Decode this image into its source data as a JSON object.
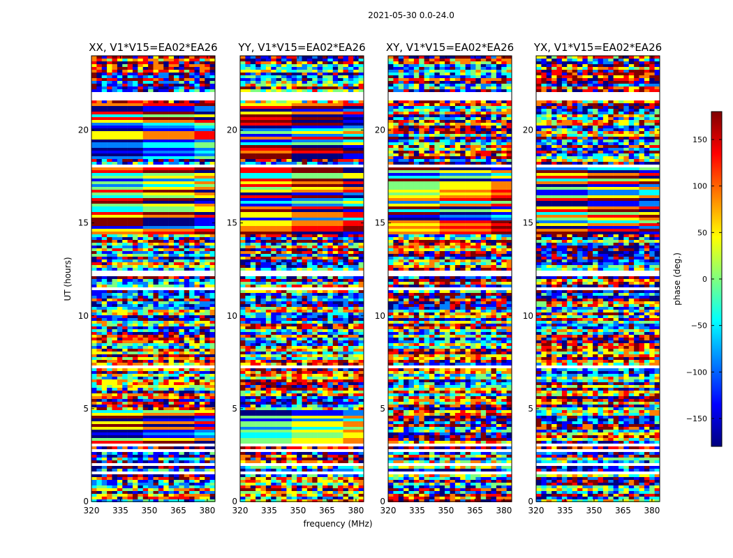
{
  "figure_title": "2021-05-30 0.0-24.0",
  "x_label": "frequency (MHz)",
  "y_label": "UT (hours)",
  "colorbar_label": "phase (deg.)",
  "colorbar_ticks": [
    "150",
    "100",
    "50",
    "0",
    "−50",
    "−100",
    "−150"
  ],
  "colorbar_tick_values": [
    150,
    100,
    50,
    0,
    -50,
    -100,
    -150
  ],
  "colorbar_range": [
    -180,
    180
  ],
  "colormap": [
    "#00007f",
    "#0000ff",
    "#007fff",
    "#00ffff",
    "#7fff7f",
    "#ffff00",
    "#ff7f00",
    "#ff0000",
    "#7f0000"
  ],
  "chart_data": [
    {
      "type": "heatmap",
      "title": "XX, V1*V15=EA02*EA26",
      "xlabel": "frequency (MHz)",
      "ylabel": "UT (hours)",
      "xlim": [
        320,
        384
      ],
      "ylim": [
        0,
        24
      ],
      "x_ticks": [
        320,
        335,
        350,
        365,
        380
      ],
      "x_tick_labels": [
        "320",
        "335",
        "350",
        "365",
        "380"
      ],
      "y_ticks": [
        0,
        5,
        10,
        15,
        20
      ],
      "y_tick_labels": [
        "0",
        "5",
        "10",
        "15",
        "20"
      ],
      "value": "phase (deg.)"
    },
    {
      "type": "heatmap",
      "title": "YY, V1*V15=EA02*EA26",
      "xlabel": "frequency (MHz)",
      "ylabel": "UT (hours)",
      "xlim": [
        320,
        384
      ],
      "ylim": [
        0,
        24
      ],
      "x_ticks": [
        320,
        335,
        350,
        365,
        380
      ],
      "x_tick_labels": [
        "320",
        "335",
        "350",
        "365",
        "380"
      ],
      "y_ticks": [
        0,
        5,
        10,
        15,
        20
      ],
      "y_tick_labels": [
        "0",
        "5",
        "10",
        "15",
        "20"
      ],
      "value": "phase (deg.)"
    },
    {
      "type": "heatmap",
      "title": "XY, V1*V15=EA02*EA26",
      "xlabel": "frequency (MHz)",
      "ylabel": "UT (hours)",
      "xlim": [
        320,
        384
      ],
      "ylim": [
        0,
        24
      ],
      "x_ticks": [
        320,
        335,
        350,
        365,
        380
      ],
      "x_tick_labels": [
        "320",
        "335",
        "350",
        "365",
        "380"
      ],
      "y_ticks": [
        0,
        5,
        10,
        15,
        20
      ],
      "y_tick_labels": [
        "0",
        "5",
        "10",
        "15",
        "20"
      ],
      "value": "phase (deg.)"
    },
    {
      "type": "heatmap",
      "title": "YX, V1*V15=EA02*EA26",
      "xlabel": "frequency (MHz)",
      "ylabel": "UT (hours)",
      "xlim": [
        320,
        384
      ],
      "ylim": [
        0,
        24
      ],
      "x_ticks": [
        320,
        335,
        350,
        365,
        380
      ],
      "x_tick_labels": [
        "320",
        "335",
        "350",
        "365",
        "380"
      ],
      "y_ticks": [
        0,
        5,
        10,
        15,
        20
      ],
      "y_tick_labels": [
        "0",
        "5",
        "10",
        "15",
        "20"
      ],
      "value": "phase (deg.)"
    }
  ]
}
